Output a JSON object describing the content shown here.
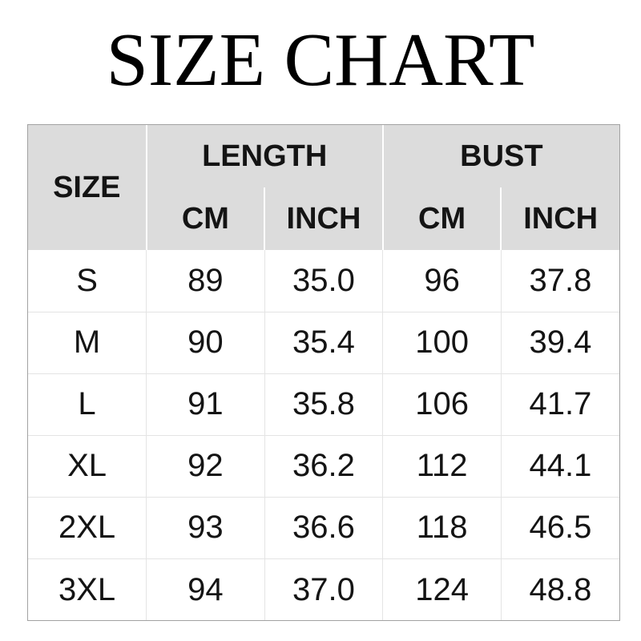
{
  "title": "SIZE CHART",
  "chart_data": {
    "type": "table",
    "title": "SIZE CHART",
    "column_groups": [
      {
        "label": "SIZE",
        "colspan": 1,
        "rowspan": 2
      },
      {
        "label": "LENGTH",
        "colspan": 2,
        "subcolumns": [
          "CM",
          "INCH"
        ]
      },
      {
        "label": "BUST",
        "colspan": 2,
        "subcolumns": [
          "CM",
          "INCH"
        ]
      }
    ],
    "flat_columns": [
      "SIZE",
      "LENGTH CM",
      "LENGTH INCH",
      "BUST CM",
      "BUST INCH"
    ],
    "rows": [
      [
        "S",
        "89",
        "35.0",
        "96",
        "37.8"
      ],
      [
        "M",
        "90",
        "35.4",
        "100",
        "39.4"
      ],
      [
        "L",
        "91",
        "35.8",
        "106",
        "41.7"
      ],
      [
        "XL",
        "92",
        "36.2",
        "112",
        "44.1"
      ],
      [
        "2XL",
        "93",
        "36.6",
        "118",
        "46.5"
      ],
      [
        "3XL",
        "94",
        "37.0",
        "124",
        "48.8"
      ]
    ]
  },
  "colors": {
    "background": "#ffffff",
    "title_text": "#000000",
    "header_background": "#dcdcdc",
    "header_separator": "#ffffff",
    "grid_line": "#e4e4e4",
    "outer_border": "#a2a2a2",
    "cell_text": "#141414"
  }
}
